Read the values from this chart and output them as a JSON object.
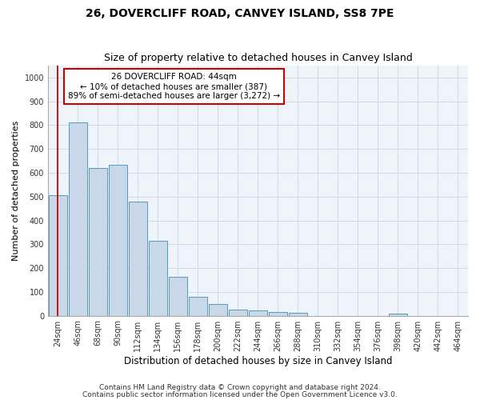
{
  "title1": "26, DOVERCLIFF ROAD, CANVEY ISLAND, SS8 7PE",
  "title2": "Size of property relative to detached houses in Canvey Island",
  "xlabel": "Distribution of detached houses by size in Canvey Island",
  "ylabel": "Number of detached properties",
  "categories": [
    "24sqm",
    "46sqm",
    "68sqm",
    "90sqm",
    "112sqm",
    "134sqm",
    "156sqm",
    "178sqm",
    "200sqm",
    "222sqm",
    "244sqm",
    "266sqm",
    "288sqm",
    "310sqm",
    "332sqm",
    "354sqm",
    "376sqm",
    "398sqm",
    "420sqm",
    "442sqm",
    "464sqm"
  ],
  "values": [
    505,
    810,
    620,
    632,
    478,
    313,
    163,
    80,
    50,
    27,
    22,
    14,
    11,
    0,
    0,
    0,
    0,
    10,
    0,
    0,
    0
  ],
  "bar_color": "#c8d8e8",
  "bar_edge_color": "#5599bb",
  "marker_line_color": "#cc0000",
  "annotation_line1": "26 DOVERCLIFF ROAD: 44sqm",
  "annotation_line2": "← 10% of detached houses are smaller (387)",
  "annotation_line3": "89% of semi-detached houses are larger (3,272) →",
  "annotation_box_color": "white",
  "annotation_box_edge_color": "#cc0000",
  "ylim": [
    0,
    1050
  ],
  "yticks": [
    0,
    100,
    200,
    300,
    400,
    500,
    600,
    700,
    800,
    900,
    1000
  ],
  "grid_color": "#ccdde8",
  "background_color": "#eef4f9",
  "footer1": "Contains HM Land Registry data © Crown copyright and database right 2024.",
  "footer2": "Contains public sector information licensed under the Open Government Licence v3.0.",
  "title1_fontsize": 10,
  "title2_fontsize": 9,
  "xlabel_fontsize": 8.5,
  "ylabel_fontsize": 8,
  "tick_fontsize": 7,
  "annotation_fontsize": 7.5,
  "footer_fontsize": 6.5
}
